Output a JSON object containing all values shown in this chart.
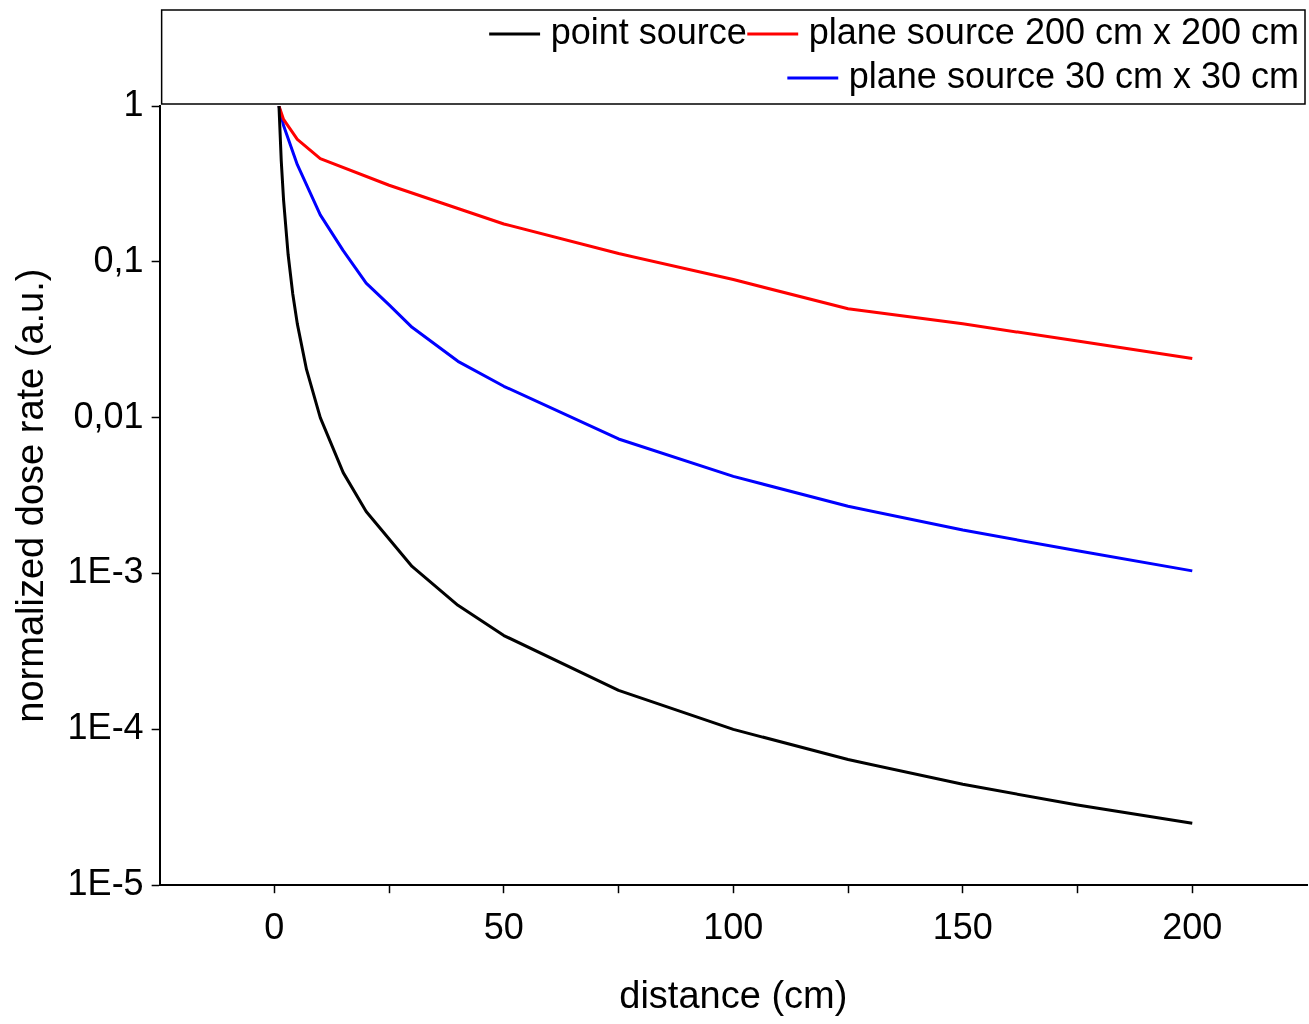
{
  "chart_data": {
    "type": "line",
    "xlabel": "distance (cm)",
    "ylabel": "normalized dose rate (a.u.)",
    "log": "y",
    "grid": false,
    "legend": "top right",
    "marker": "none",
    "line_style": "solid",
    "xlim": [
      -25,
      225
    ],
    "xticks": [
      0,
      {
        "value": 25,
        "label": null
      },
      50,
      {
        "value": 75,
        "label": null
      },
      100,
      {
        "value": 125,
        "label": null
      },
      150,
      {
        "value": 175,
        "label": null
      },
      200
    ],
    "ylim": [
      1e-05,
      1
    ],
    "yticks": [
      {
        "value": 1e-05,
        "label": "1E-5"
      },
      {
        "value": 0.0001,
        "label": "1E-4"
      },
      {
        "value": 0.001,
        "label": "1E-3"
      },
      {
        "value": 0.01,
        "label": "0,01"
      },
      {
        "value": 0.1,
        "label": "0,1"
      },
      1
    ],
    "series": [
      {
        "name": "point source",
        "color": "#000000",
        "x": [
          1,
          1.5,
          2,
          3,
          4,
          5,
          7,
          10,
          15,
          20,
          30,
          40,
          50,
          75,
          100,
          125,
          150,
          175,
          200
        ],
        "values": [
          1,
          0.444,
          0.25,
          0.111,
          0.0625,
          0.04,
          0.0204,
          0.01,
          0.00444,
          0.0025,
          0.00111,
          0.000625,
          0.0004,
          0.000178,
          0.0001,
          6.4e-05,
          4.44e-05,
          3.27e-05,
          2.5e-05
        ]
      },
      {
        "name": "plane source 200 cm x 200 cm",
        "color": "#ff0000",
        "x": [
          1,
          2,
          5,
          10,
          25,
          50,
          75,
          100,
          125,
          150,
          175,
          200
        ],
        "values": [
          1,
          0.82,
          0.61,
          0.46,
          0.31,
          0.175,
          0.113,
          0.077,
          0.05,
          0.04,
          0.031,
          0.024
        ]
      },
      {
        "name": "plane source 30 cm x 30 cm",
        "color": "#0000ff",
        "x": [
          1,
          2,
          5,
          10,
          15,
          20,
          25,
          30,
          40,
          50,
          75,
          100,
          125,
          150,
          175,
          200
        ],
        "values": [
          1,
          0.75,
          0.42,
          0.2,
          0.118,
          0.073,
          0.053,
          0.038,
          0.023,
          0.0159,
          0.0073,
          0.0042,
          0.0027,
          0.0019,
          0.0014,
          0.00104
        ]
      }
    ]
  }
}
